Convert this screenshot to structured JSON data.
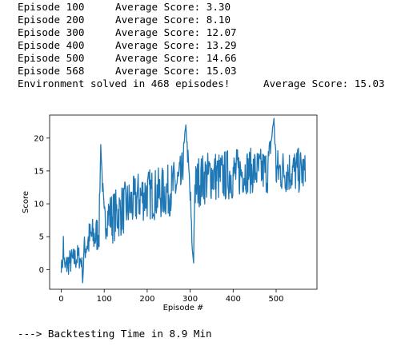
{
  "stdout": {
    "episodes": [
      {
        "episode": "Episode 100",
        "score": "Average Score: 3.30"
      },
      {
        "episode": "Episode 200",
        "score": "Average Score: 8.10"
      },
      {
        "episode": "Episode 300",
        "score": "Average Score: 12.07"
      },
      {
        "episode": "Episode 400",
        "score": "Average Score: 13.29"
      },
      {
        "episode": "Episode 500",
        "score": "Average Score: 14.66"
      },
      {
        "episode": "Episode 568",
        "score": "Average Score: 15.03"
      }
    ],
    "solved": "Environment solved in 468 episodes!",
    "solved_score": "Average Score: 15.03"
  },
  "footer": "---> Backtesting Time in 8.9 Min",
  "chart_data": {
    "type": "line",
    "xlabel": "Episode #",
    "ylabel": "Score",
    "xlim": [
      -27,
      595
    ],
    "ylim": [
      -3,
      23.5
    ],
    "xticks": [
      0,
      100,
      200,
      300,
      400,
      500
    ],
    "yticks": [
      0,
      5,
      10,
      15,
      20
    ],
    "grid": false,
    "color": "#1f77b4",
    "series": [
      {
        "x_start": 1,
        "keypoints_x": [
          0,
          4,
          5,
          6,
          8,
          15,
          30,
          40,
          48,
          50,
          53,
          60,
          70,
          80,
          88,
          92,
          100,
          110,
          120,
          150,
          165,
          180,
          200,
          230,
          250,
          280,
          290,
          300,
          305,
          308,
          310,
          320,
          340,
          350,
          370,
          390,
          400,
          430,
          460,
          480,
          495,
          500,
          505,
          520,
          540,
          560,
          568
        ],
        "keypoints_y": [
          0.5,
          1,
          5,
          2,
          0,
          1,
          1.5,
          2,
          1,
          -2,
          3,
          4,
          5,
          5,
          6,
          19,
          7,
          8.5,
          8,
          9.5,
          10,
          11,
          11.5,
          11.5,
          12,
          13.5,
          22,
          11,
          3,
          1,
          12,
          13.5,
          14,
          14.5,
          14,
          14.5,
          14.5,
          15,
          15,
          15,
          23,
          15,
          15,
          15,
          15,
          15,
          14.5
        ],
        "noise_amplitude": [
          1,
          1,
          0.5,
          1,
          2,
          2,
          2,
          2,
          1,
          0,
          2,
          3,
          3,
          3,
          3,
          0,
          3,
          3,
          4,
          4,
          4,
          4,
          4,
          4,
          4,
          4,
          0,
          4,
          0,
          0,
          4,
          4,
          4,
          4,
          4,
          4,
          4,
          3.5,
          3.5,
          3.5,
          0,
          3.5,
          3.5,
          3.5,
          3.5,
          3.5,
          3
        ]
      }
    ]
  }
}
